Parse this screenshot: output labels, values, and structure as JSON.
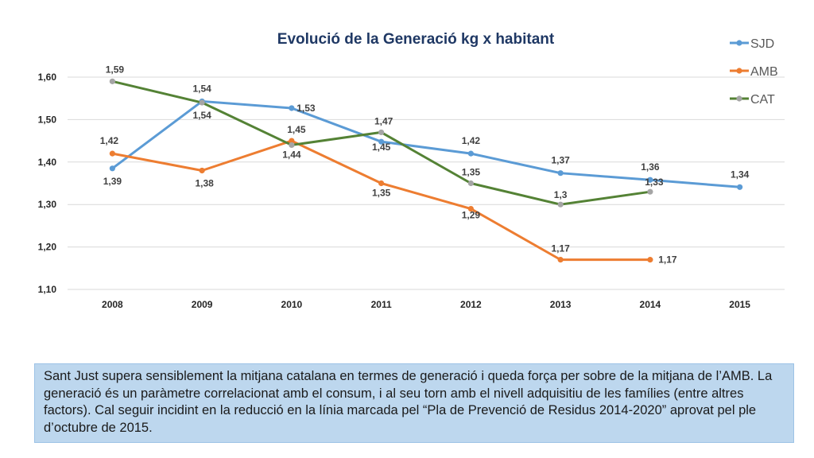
{
  "chart_data": {
    "type": "line",
    "title": "Evolució de la Generació kg x habitant",
    "categories": [
      "2008",
      "2009",
      "2010",
      "2011",
      "2012",
      "2013",
      "2014",
      "2015"
    ],
    "ylim": [
      1.1,
      1.6
    ],
    "yticks": [
      "1,10",
      "1,20",
      "1,30",
      "1,40",
      "1,50",
      "1,60"
    ],
    "ytick_values": [
      1.1,
      1.2,
      1.3,
      1.4,
      1.5,
      1.6
    ],
    "grid": true,
    "legend_position": "top-right",
    "series": [
      {
        "name": "SJD",
        "color": "#5b9bd5",
        "values": [
          1.385,
          1.543,
          1.527,
          1.448,
          1.42,
          1.374,
          1.358,
          1.341
        ],
        "labels": [
          "1,39",
          "1,54",
          "1,53",
          "1,45",
          "1,42",
          "1,37",
          "1,36",
          "1,34"
        ]
      },
      {
        "name": "AMB",
        "color": "#ed7d31",
        "values": [
          1.42,
          1.38,
          1.45,
          1.35,
          1.29,
          1.17,
          1.17,
          null
        ],
        "labels": [
          "1,42",
          "1,38",
          "1,45",
          "1,35",
          "1,29",
          "1,17",
          "1,17",
          null
        ]
      },
      {
        "name": "CAT",
        "color": "#548235",
        "values": [
          1.59,
          1.54,
          1.44,
          1.47,
          1.35,
          1.3,
          1.33,
          null
        ],
        "labels": [
          "1,59",
          "1,54",
          "1,44",
          "1,47",
          "1,35",
          "1,3",
          "1,33",
          null
        ]
      }
    ]
  },
  "note": {
    "text": "Sant Just supera sensiblement la mitjana catalana en termes de generació i queda força per sobre de la mitjana de l’AMB. La generació és un paràmetre correlacionat amb el consum, i al seu torn amb el nivell adquisitiu de les famílies (entre altres factors). Cal seguir incidint en la reducció en la línia marcada pel “Pla de Prevenció de Residus 2014-2020” aprovat pel ple d’octubre de 2015."
  }
}
